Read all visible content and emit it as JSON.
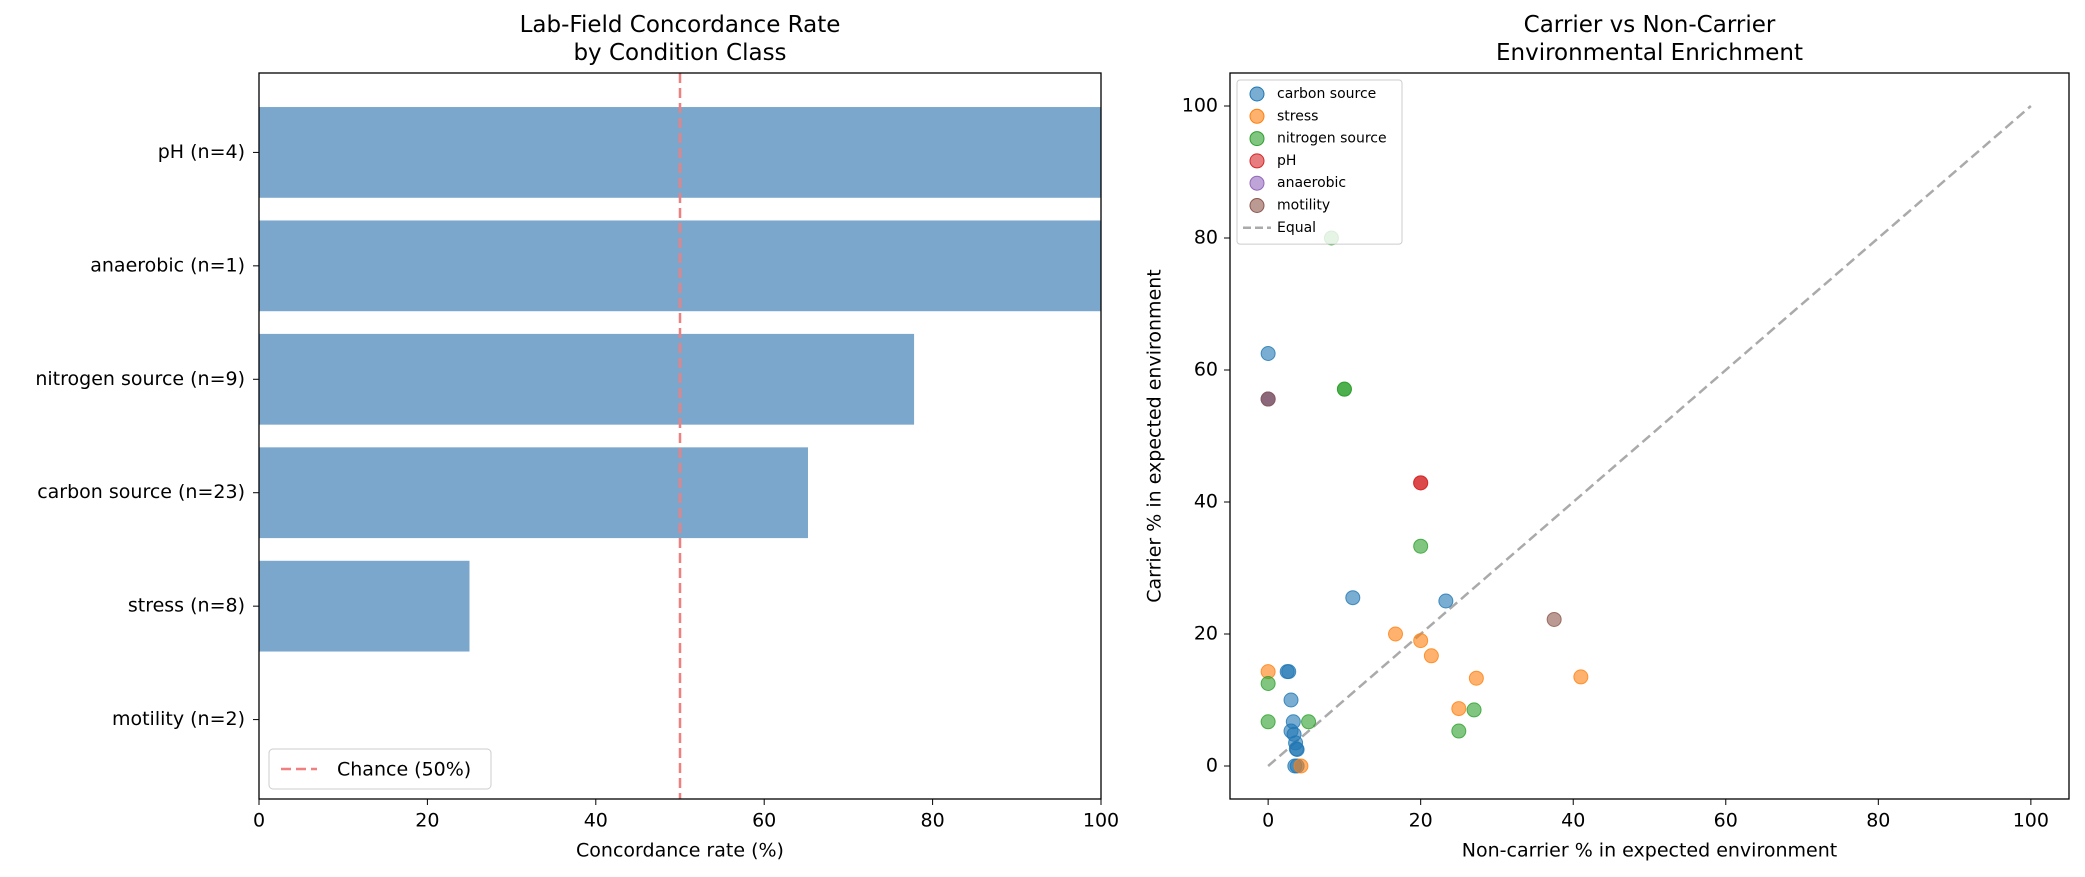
{
  "chart_data": [
    {
      "type": "barh",
      "title": "Lab-Field Concordance Rate\nby Condition Class",
      "x_label": "Concordance rate (%)",
      "categories": [
        "pH (n=4)",
        "anaerobic (n=1)",
        "nitrogen source (n=9)",
        "carbon source (n=23)",
        "stress (n=8)",
        "motility (n=2)"
      ],
      "values": [
        100,
        100,
        77.8,
        65.2,
        25,
        0
      ],
      "color": "#7ba7cc",
      "xlim": [
        0,
        100
      ],
      "xticks": [
        0,
        20,
        40,
        60,
        80,
        100
      ],
      "reference_line": {
        "name": "Chance (50%)",
        "value": 50,
        "color": "#f08080"
      },
      "legend": "lower left"
    },
    {
      "type": "scatter",
      "title": "Carrier vs Non-Carrier\nEnvironmental Enrichment",
      "x_label": "Non-carrier % in expected environment",
      "y_label": "Carrier % in expected environment",
      "xlim": [
        -5,
        105
      ],
      "ylim": [
        -5,
        105
      ],
      "xticks": [
        0,
        20,
        40,
        60,
        80,
        100
      ],
      "yticks": [
        0,
        20,
        40,
        60,
        80,
        100
      ],
      "series": [
        {
          "name": "carbon source",
          "color": "#1f77b4",
          "x": [
            0,
            0,
            11.1,
            23.3,
            2.5,
            2.7,
            3,
            3.3,
            3,
            3.4,
            3.6,
            3.7,
            3.8,
            3.5,
            3.8
          ],
          "values": [
            62.5,
            55.6,
            25.5,
            25,
            14.3,
            14.3,
            10,
            6.7,
            5.3,
            4.8,
            3.5,
            2.6,
            2.5,
            0,
            0
          ]
        },
        {
          "name": "stress",
          "color": "#ff7f0e",
          "x": [
            0,
            16.7,
            20,
            21.4,
            27.3,
            41,
            25,
            4.3
          ],
          "values": [
            14.3,
            20,
            19,
            16.7,
            13.3,
            13.5,
            8.7,
            0
          ]
        },
        {
          "name": "nitrogen source",
          "color": "#2ca02c",
          "x": [
            8.3,
            10,
            10,
            20,
            0,
            0,
            5.3,
            25,
            27
          ],
          "values": [
            80,
            57.1,
            57.1,
            33.3,
            12.5,
            6.7,
            6.7,
            5.3,
            8.5
          ]
        },
        {
          "name": "pH",
          "color": "#d62728",
          "x": [
            20,
            20
          ],
          "values": [
            42.9,
            42.9
          ]
        },
        {
          "name": "anaerobic",
          "color": "#9467bd",
          "x": [
            0
          ],
          "values": [
            55.6
          ]
        },
        {
          "name": "motility",
          "color": "#8c564b",
          "x": [
            37.5,
            0
          ],
          "values": [
            22.2,
            55.6
          ]
        }
      ],
      "reference_line": {
        "name": "Equal",
        "color": "#aaaaaa",
        "x": [
          0,
          100
        ],
        "y": [
          0,
          100
        ]
      },
      "legend": "upper left"
    }
  ]
}
